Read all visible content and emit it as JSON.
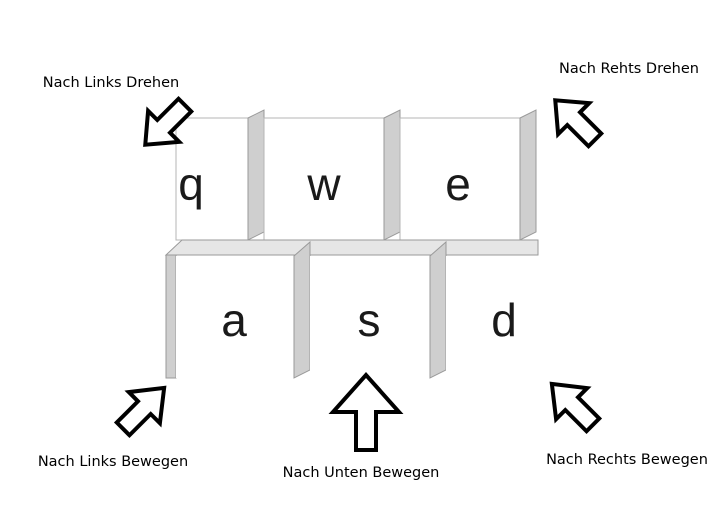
{
  "keys": {
    "q": "q",
    "w": "w",
    "e": "e",
    "a": "a",
    "s": "s",
    "d": "d"
  },
  "labels": {
    "q": "Nach Links Drehen",
    "e": "Nach Rehts Drehen",
    "a": "Nach Links Bewegen",
    "s": "Nach Unten Bewegen",
    "d": "Nach Rechts Bewegen"
  },
  "colors": {
    "key_face": "#ffffff",
    "key_side": "#cfcfcf",
    "key_edge": "#9a9a9a",
    "arrow_fill": "#ffffff",
    "arrow_stroke": "#000000",
    "text": "#000000"
  }
}
